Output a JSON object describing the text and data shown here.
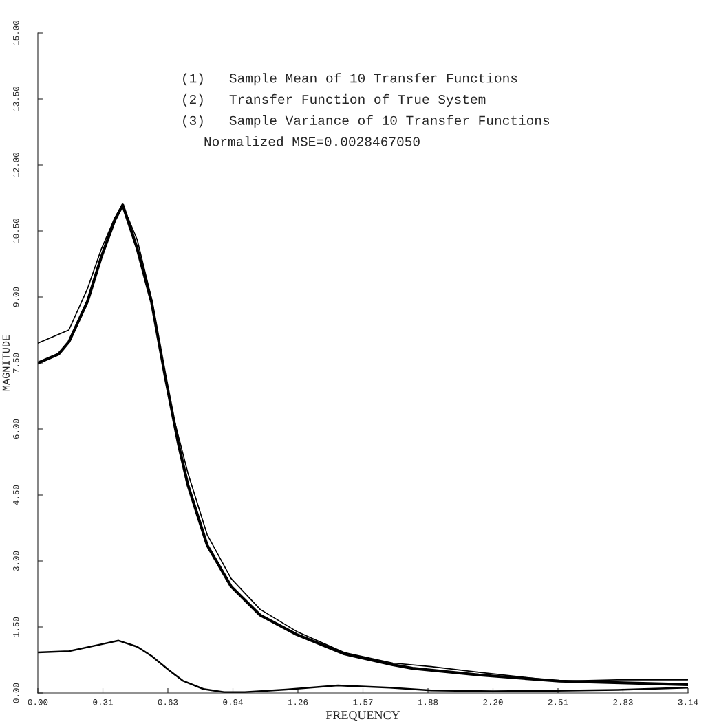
{
  "chart_data": {
    "type": "line",
    "xlabel": "FREQUENCY",
    "ylabel": "MAGNITUDE",
    "annotations": [
      "(1)   Sample Mean of 10 Transfer Functions",
      "(2)   Transfer Function of True System",
      "(3)   Sample Variance of 10 Transfer Functions",
      "Normalized MSE=0.0028467050"
    ],
    "xlim": [
      0,
      3.1416
    ],
    "ylim": [
      0,
      15
    ],
    "xticks": [
      {
        "value": 0,
        "label": "0.00"
      },
      {
        "value": 0.3142,
        "label": "0.31"
      },
      {
        "value": 0.6283,
        "label": "0.63"
      },
      {
        "value": 0.9425,
        "label": "0.94"
      },
      {
        "value": 1.2566,
        "label": "1.26"
      },
      {
        "value": 1.5708,
        "label": "1.57"
      },
      {
        "value": 1.885,
        "label": "1.88"
      },
      {
        "value": 2.1991,
        "label": "2.20"
      },
      {
        "value": 2.5133,
        "label": "2.51"
      },
      {
        "value": 2.8274,
        "label": "2.83"
      },
      {
        "value": 3.1416,
        "label": "3.14"
      }
    ],
    "yticks": [
      {
        "value": 0,
        "label": "0.00"
      },
      {
        "value": 1.5,
        "label": "1.50"
      },
      {
        "value": 3,
        "label": "3.00"
      },
      {
        "value": 4.5,
        "label": "4.50"
      },
      {
        "value": 6,
        "label": "6.00"
      },
      {
        "value": 7.5,
        "label": "7.50"
      },
      {
        "value": 9,
        "label": "9.00"
      },
      {
        "value": 10.5,
        "label": "10.50"
      },
      {
        "value": 12,
        "label": "12.00"
      },
      {
        "value": 13.5,
        "label": "13.50"
      },
      {
        "value": 15,
        "label": "15.00"
      }
    ],
    "grid": false,
    "legend": false,
    "marker": "none",
    "line_style": "solid",
    "series": [
      {
        "color": "#000000",
        "x": [
          0,
          0.15,
          0.24,
          0.306,
          0.372,
          0.41,
          0.48,
          0.55,
          0.64,
          0.725,
          0.818,
          0.934,
          1.074,
          1.25,
          1.48,
          1.715,
          1.9,
          2.13,
          2.52,
          2.8,
          3.14
        ],
        "values": [
          7.95,
          8.25,
          9.19,
          10.08,
          10.8,
          11.09,
          10.3,
          8.95,
          6.55,
          5.0,
          3.6,
          2.6,
          1.9,
          1.4,
          0.92,
          0.68,
          0.6,
          0.47,
          0.27,
          0.3,
          0.3
        ]
      },
      {
        "color": "#000000",
        "x": [
          0,
          0.1,
          0.15,
          0.24,
          0.306,
          0.372,
          0.41,
          0.48,
          0.55,
          0.615,
          0.68,
          0.725,
          0.818,
          0.934,
          1.074,
          1.25,
          1.48,
          1.715,
          1.81,
          2.13,
          2.52,
          3.14
        ],
        "values": [
          7.5,
          7.7,
          7.98,
          8.9,
          9.9,
          10.75,
          11.09,
          10.1,
          8.87,
          7.2,
          5.64,
          4.73,
          3.36,
          2.42,
          1.77,
          1.33,
          0.89,
          0.64,
          0.56,
          0.41,
          0.27,
          0.19
        ]
      },
      {
        "color": "#000000",
        "x": [
          0,
          0.15,
          0.3,
          0.39,
          0.48,
          0.55,
          0.63,
          0.7,
          0.8,
          0.9,
          1.0,
          1.2,
          1.45,
          1.7,
          1.9,
          2.2,
          2.5,
          2.8,
          3.14
        ],
        "values": [
          0.92,
          0.95,
          1.1,
          1.19,
          1.05,
          0.84,
          0.53,
          0.28,
          0.09,
          0.02,
          0.02,
          0.08,
          0.17,
          0.12,
          0.06,
          0.04,
          0.05,
          0.07,
          0.12
        ]
      }
    ]
  }
}
